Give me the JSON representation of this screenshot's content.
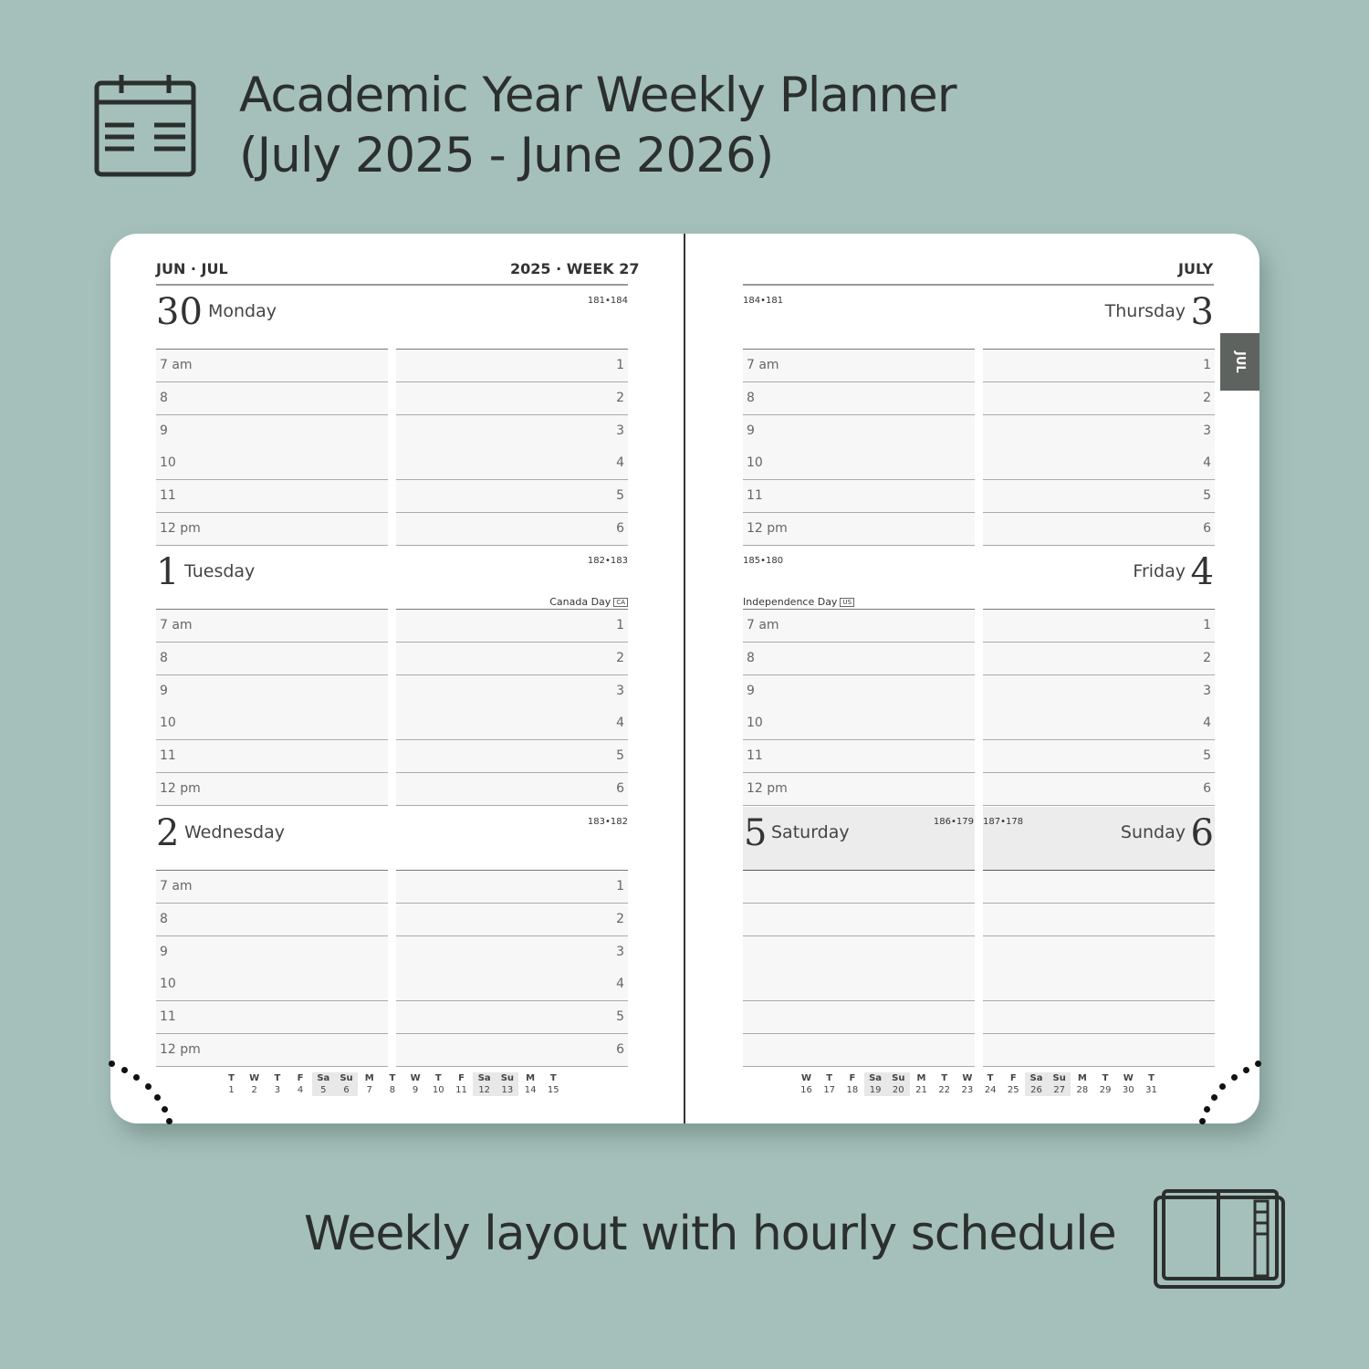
{
  "header": {
    "title_line1": "Academic Year Weekly Planner",
    "title_line2": "(July 2025 - June 2026)",
    "icon": "calendar-icon"
  },
  "footer": {
    "subtitle": "Weekly layout with hourly schedule",
    "icon": "planner-book-icon"
  },
  "left_page": {
    "months": "JUN · JUL",
    "week": "2025 · WEEK 27"
  },
  "right_page": {
    "month": "JULY",
    "tab": "JUL"
  },
  "hours": [
    "7 am",
    "8",
    "9",
    "10",
    "11",
    "12 pm"
  ],
  "slots": [
    "1",
    "2",
    "3",
    "4",
    "5",
    "6"
  ],
  "days": [
    {
      "num": "30",
      "name": "Monday",
      "count": "181•184",
      "holiday": "",
      "badge": ""
    },
    {
      "num": "1",
      "name": "Tuesday",
      "count": "182•183",
      "holiday": "Canada Day",
      "badge": "CA"
    },
    {
      "num": "2",
      "name": "Wednesday",
      "count": "183•182",
      "holiday": "",
      "badge": ""
    },
    {
      "num": "3",
      "name": "Thursday",
      "count": "184•181",
      "holiday": "",
      "badge": ""
    },
    {
      "num": "4",
      "name": "Friday",
      "count": "185•180",
      "holiday": "Independence Day",
      "badge": "US"
    },
    {
      "num": "5",
      "name": "Saturday",
      "count": "186•179",
      "holiday": "",
      "badge": ""
    },
    {
      "num": "6",
      "name": "Sunday",
      "count": "187•178",
      "holiday": "",
      "badge": ""
    }
  ],
  "mini_left": {
    "weekdays": [
      "T",
      "W",
      "T",
      "F",
      "Sa",
      "Su",
      "M",
      "T",
      "W",
      "T",
      "F",
      "Sa",
      "Su",
      "M",
      "T"
    ],
    "dates": [
      "1",
      "2",
      "3",
      "4",
      "5",
      "6",
      "7",
      "8",
      "9",
      "10",
      "11",
      "12",
      "13",
      "14",
      "15"
    ]
  },
  "mini_right": {
    "weekdays": [
      "W",
      "T",
      "F",
      "Sa",
      "Su",
      "M",
      "T",
      "W",
      "T",
      "F",
      "Sa",
      "Su",
      "M",
      "T",
      "W",
      "T"
    ],
    "dates": [
      "16",
      "17",
      "18",
      "19",
      "20",
      "21",
      "22",
      "23",
      "24",
      "25",
      "26",
      "27",
      "28",
      "29",
      "30",
      "31"
    ]
  },
  "colors": {
    "background": "#a5c0bb",
    "tab": "#5f6360",
    "text": "#2b2f2e"
  }
}
